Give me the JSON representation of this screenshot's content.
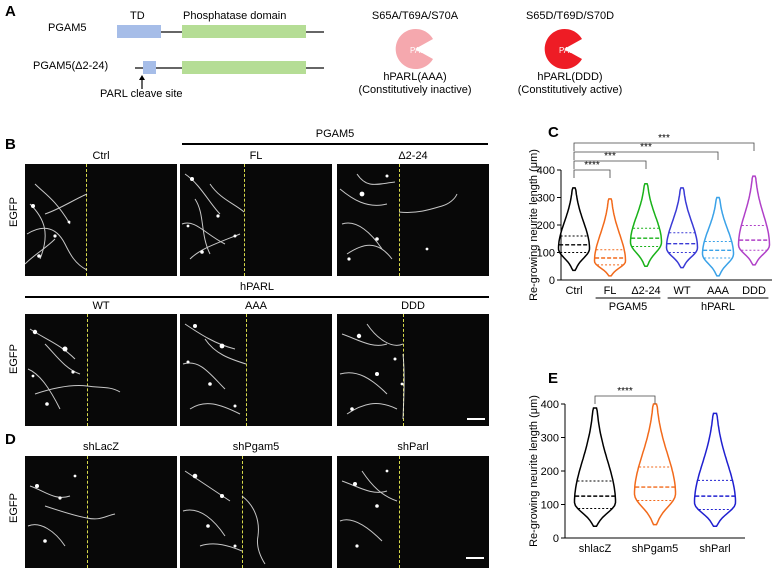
{
  "panels": {
    "A": "A",
    "B": "B",
    "C": "C",
    "D": "D",
    "E": "E"
  },
  "panelA": {
    "row1_name": "PGAM5",
    "row2_name": "PGAM5(Δ2-24)",
    "td_label": "TD",
    "phosphatase_label": "Phosphatase domain",
    "cleave_label": "PARL cleave site",
    "aaa_mut": "S65A/T69A/S70A",
    "aaa_pac": "PARL",
    "aaa_name": "hPARL(AAA)",
    "aaa_desc": "(Constitutively inactive)",
    "ddd_mut": "S65D/T69D/S70D",
    "ddd_pac": "PARL",
    "ddd_name": "hPARL(DDD)",
    "ddd_desc": "(Constitutively active)",
    "colors": {
      "td": "#a6bde8",
      "phosphatase": "#b5dd95",
      "aaa": "#f5a8ae",
      "ddd": "#ee1c25"
    }
  },
  "panelB": {
    "group_pgam5": "PGAM5",
    "group_hparl": "hPARL",
    "row_label": "EGFP",
    "row1": [
      "Ctrl",
      "FL",
      "Δ2-24"
    ],
    "row2": [
      "WT",
      "AAA",
      "DDD"
    ]
  },
  "panelD": {
    "row_label": "EGFP",
    "row": [
      "shLacZ",
      "shPgam5",
      "shParl"
    ]
  },
  "chart_data": [
    {
      "type": "violin",
      "ylabel": "Re-growing neurite length (μm)",
      "ylim": [
        0,
        400
      ],
      "yticks": [
        0,
        100,
        200,
        300,
        400
      ],
      "categories": [
        "Ctrl",
        "FL",
        "Δ2-24",
        "WT",
        "AAA",
        "DDD"
      ],
      "groups": [
        {
          "label": "PGAM5",
          "members": [
            "FL",
            "Δ2-24"
          ]
        },
        {
          "label": "hPARL",
          "members": [
            "WT",
            "AAA",
            "DDD"
          ]
        }
      ],
      "colors": [
        "#000000",
        "#f26a1b",
        "#19b219",
        "#3a3ad6",
        "#3aa2e8",
        "#b040c8"
      ],
      "series": [
        {
          "category": "Ctrl",
          "min": 35,
          "q1": 100,
          "median": 128,
          "q3": 160,
          "max": 335
        },
        {
          "category": "FL",
          "min": 15,
          "q1": 55,
          "median": 80,
          "q3": 110,
          "max": 295
        },
        {
          "category": "Δ2-24",
          "min": 50,
          "q1": 122,
          "median": 152,
          "q3": 188,
          "max": 350
        },
        {
          "category": "WT",
          "min": 45,
          "q1": 100,
          "median": 132,
          "q3": 172,
          "max": 335
        },
        {
          "category": "AAA",
          "min": 15,
          "q1": 80,
          "median": 108,
          "q3": 140,
          "max": 300
        },
        {
          "category": "DDD",
          "min": 55,
          "q1": 108,
          "median": 145,
          "q3": 198,
          "max": 378
        }
      ],
      "significance": [
        {
          "from": "Ctrl",
          "to": "FL",
          "label": "****"
        },
        {
          "from": "Ctrl",
          "to": "Δ2-24",
          "label": "***"
        },
        {
          "from": "Ctrl",
          "to": "AAA",
          "label": "***"
        },
        {
          "from": "Ctrl",
          "to": "DDD",
          "label": "***"
        }
      ]
    },
    {
      "type": "violin",
      "ylabel": "Re-growing neurite length (μm)",
      "ylim": [
        0,
        400
      ],
      "yticks": [
        0,
        100,
        200,
        300,
        400
      ],
      "categories": [
        "shlacZ",
        "shPgam5",
        "shParl"
      ],
      "colors": [
        "#000000",
        "#f26a1b",
        "#2020d0"
      ],
      "series": [
        {
          "category": "shlacZ",
          "min": 35,
          "q1": 88,
          "median": 125,
          "q3": 170,
          "max": 388
        },
        {
          "category": "shPgam5",
          "min": 40,
          "q1": 112,
          "median": 152,
          "q3": 212,
          "max": 400
        },
        {
          "category": "shParl",
          "min": 35,
          "q1": 85,
          "median": 125,
          "q3": 172,
          "max": 372
        }
      ],
      "significance": [
        {
          "from": "shlacZ",
          "to": "shPgam5",
          "label": "****"
        }
      ]
    }
  ]
}
